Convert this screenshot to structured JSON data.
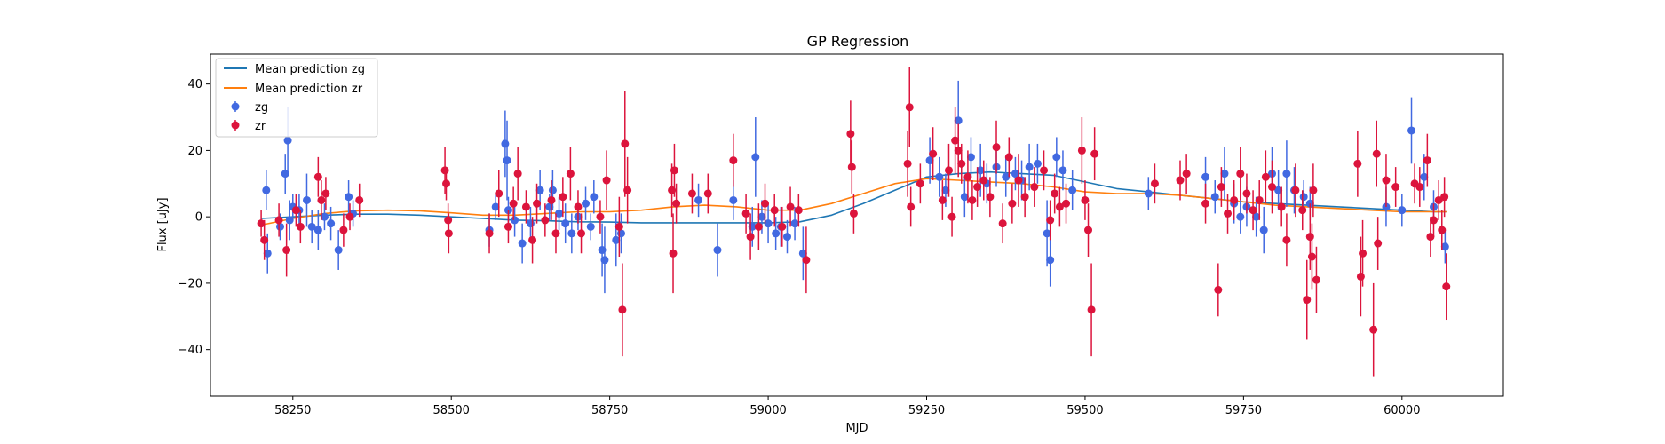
{
  "chart_data": {
    "type": "scatter",
    "title": "GP Regression",
    "xlabel": "MJD",
    "ylabel": "Flux [uJy]",
    "xlim": [
      58120,
      60160
    ],
    "ylim": [
      -54,
      49
    ],
    "xticks": [
      58250,
      58500,
      58750,
      59000,
      59250,
      59500,
      59750,
      60000
    ],
    "yticks": [
      -40,
      -20,
      0,
      20,
      40
    ],
    "grid": false,
    "legend": {
      "placement": "top-left",
      "entries": [
        "Mean prediction zg",
        "Mean prediction zr",
        "zg",
        "zr"
      ]
    },
    "colors": {
      "zg_points": "#4169e1",
      "zr_points": "#dc143c",
      "zg_mean": "#1f77b4",
      "zr_mean": "#ff7f0e"
    },
    "series": [
      {
        "name": "Mean prediction zg",
        "kind": "line",
        "x": [
          58200,
          58250,
          58300,
          58350,
          58400,
          58450,
          58500,
          58550,
          58600,
          58650,
          58700,
          58750,
          58800,
          58850,
          58900,
          58950,
          59000,
          59050,
          59100,
          59150,
          59200,
          59250,
          59300,
          59350,
          59400,
          59450,
          59500,
          59550,
          59600,
          59650,
          59700,
          59750,
          59800,
          59850,
          59900,
          59950,
          60000,
          60050,
          60070
        ],
        "y": [
          -0.5,
          0.0,
          0.5,
          0.8,
          0.8,
          0.5,
          0.0,
          -0.5,
          -1.0,
          -1.2,
          -1.5,
          -1.6,
          -1.8,
          -1.8,
          -1.8,
          -1.8,
          -1.8,
          -1.5,
          0.5,
          4.0,
          8.0,
          12.0,
          13.0,
          13.5,
          13.0,
          12.5,
          10.5,
          8.5,
          7.5,
          6.5,
          5.5,
          4.5,
          4.0,
          3.5,
          3.0,
          2.5,
          2.0,
          1.5,
          1.5
        ]
      },
      {
        "name": "Mean prediction zr",
        "kind": "line",
        "x": [
          58200,
          58250,
          58300,
          58350,
          58400,
          58450,
          58500,
          58550,
          58600,
          58650,
          58700,
          58750,
          58800,
          58850,
          58900,
          58950,
          59000,
          59050,
          59100,
          59150,
          59200,
          59250,
          59300,
          59350,
          59400,
          59450,
          59500,
          59550,
          59600,
          59650,
          59700,
          59750,
          59800,
          59850,
          59900,
          59950,
          60000,
          60050,
          60070
        ],
        "y": [
          -2.5,
          -0.5,
          1.0,
          1.8,
          2.0,
          1.8,
          1.2,
          0.5,
          0.5,
          1.0,
          1.5,
          1.5,
          2.0,
          3.0,
          3.5,
          3.0,
          2.0,
          2.0,
          4.0,
          7.0,
          10.0,
          11.5,
          11.0,
          10.5,
          10.0,
          9.0,
          7.5,
          7.0,
          7.0,
          6.5,
          5.5,
          4.5,
          3.5,
          3.0,
          2.5,
          2.0,
          1.5,
          1.5,
          1.5
        ]
      },
      {
        "name": "zg",
        "kind": "errorbar",
        "points": [
          [
            58208,
            8,
            6
          ],
          [
            58210,
            -11,
            6
          ],
          [
            58230,
            -3,
            4
          ],
          [
            58238,
            13,
            6
          ],
          [
            58242,
            23,
            10
          ],
          [
            58245,
            -1,
            6
          ],
          [
            58250,
            3,
            4
          ],
          [
            58260,
            2,
            5
          ],
          [
            58272,
            5,
            8
          ],
          [
            58280,
            -3,
            5
          ],
          [
            58290,
            -4,
            6
          ],
          [
            58300,
            0,
            4
          ],
          [
            58310,
            -2,
            5
          ],
          [
            58322,
            -10,
            6
          ],
          [
            58338,
            6,
            5
          ],
          [
            58345,
            1,
            4
          ],
          [
            58560,
            -4,
            5
          ],
          [
            58570,
            3,
            4
          ],
          [
            58585,
            22,
            10
          ],
          [
            58588,
            17,
            12
          ],
          [
            58590,
            2,
            4
          ],
          [
            58600,
            -1,
            5
          ],
          [
            58612,
            -8,
            6
          ],
          [
            58625,
            -2,
            5
          ],
          [
            58640,
            8,
            6
          ],
          [
            58655,
            3,
            4
          ],
          [
            58660,
            8,
            6
          ],
          [
            58670,
            1,
            5
          ],
          [
            58680,
            -2,
            6
          ],
          [
            58690,
            -5,
            6
          ],
          [
            58700,
            0,
            4
          ],
          [
            58712,
            4,
            5
          ],
          [
            58720,
            -3,
            4
          ],
          [
            58725,
            6,
            5
          ],
          [
            58738,
            -10,
            8
          ],
          [
            58742,
            -13,
            10
          ],
          [
            58760,
            -7,
            8
          ],
          [
            58768,
            -5,
            6
          ],
          [
            58890,
            5,
            5
          ],
          [
            58920,
            -10,
            8
          ],
          [
            58945,
            5,
            6
          ],
          [
            58975,
            -3,
            6
          ],
          [
            58980,
            18,
            12
          ],
          [
            58990,
            0,
            5
          ],
          [
            59000,
            -2,
            6
          ],
          [
            59012,
            -5,
            5
          ],
          [
            59020,
            -3,
            6
          ],
          [
            59030,
            -6,
            5
          ],
          [
            59042,
            -2,
            5
          ],
          [
            59055,
            -11,
            8
          ],
          [
            59255,
            17,
            7
          ],
          [
            59270,
            12,
            6
          ],
          [
            59280,
            8,
            5
          ],
          [
            59300,
            29,
            12
          ],
          [
            59310,
            6,
            6
          ],
          [
            59320,
            18,
            6
          ],
          [
            59335,
            14,
            8
          ],
          [
            59345,
            10,
            6
          ],
          [
            59360,
            15,
            6
          ],
          [
            59375,
            12,
            6
          ],
          [
            59390,
            13,
            5
          ],
          [
            59400,
            11,
            6
          ],
          [
            59412,
            15,
            7
          ],
          [
            59425,
            16,
            6
          ],
          [
            59440,
            -5,
            10
          ],
          [
            59445,
            -13,
            8
          ],
          [
            59455,
            18,
            6
          ],
          [
            59465,
            14,
            6
          ],
          [
            59480,
            8,
            6
          ],
          [
            59600,
            7,
            5
          ],
          [
            59690,
            12,
            6
          ],
          [
            59705,
            6,
            5
          ],
          [
            59720,
            13,
            8
          ],
          [
            59735,
            4,
            6
          ],
          [
            59745,
            0,
            5
          ],
          [
            59755,
            3,
            6
          ],
          [
            59770,
            0,
            6
          ],
          [
            59782,
            -4,
            7
          ],
          [
            59795,
            13,
            8
          ],
          [
            59805,
            8,
            6
          ],
          [
            59818,
            13,
            10
          ],
          [
            59830,
            8,
            7
          ],
          [
            59845,
            6,
            5
          ],
          [
            59855,
            4,
            5
          ],
          [
            59975,
            3,
            6
          ],
          [
            60000,
            2,
            5
          ],
          [
            60015,
            26,
            10
          ],
          [
            60035,
            12,
            7
          ],
          [
            60050,
            3,
            5
          ],
          [
            60068,
            -9,
            5
          ]
        ]
      },
      {
        "name": "zr",
        "kind": "errorbar",
        "points": [
          [
            58200,
            -2,
            4
          ],
          [
            58205,
            -7,
            6
          ],
          [
            58228,
            -1,
            5
          ],
          [
            58240,
            -10,
            8
          ],
          [
            58255,
            2,
            5
          ],
          [
            58262,
            -3,
            5
          ],
          [
            58290,
            12,
            6
          ],
          [
            58295,
            5,
            6
          ],
          [
            58302,
            7,
            5
          ],
          [
            58330,
            -4,
            5
          ],
          [
            58340,
            0,
            4
          ],
          [
            58355,
            5,
            5
          ],
          [
            58490,
            14,
            7
          ],
          [
            58492,
            10,
            5
          ],
          [
            58496,
            -5,
            6
          ],
          [
            58495,
            -1,
            5
          ],
          [
            58560,
            -5,
            6
          ],
          [
            58575,
            7,
            7
          ],
          [
            58590,
            -3,
            5
          ],
          [
            58598,
            4,
            5
          ],
          [
            58605,
            13,
            8
          ],
          [
            58618,
            3,
            5
          ],
          [
            58628,
            -7,
            7
          ],
          [
            58635,
            4,
            6
          ],
          [
            58648,
            -1,
            5
          ],
          [
            58658,
            5,
            6
          ],
          [
            58665,
            -5,
            6
          ],
          [
            58676,
            6,
            6
          ],
          [
            58688,
            13,
            8
          ],
          [
            58700,
            3,
            5
          ],
          [
            58705,
            -5,
            6
          ],
          [
            58735,
            0,
            5
          ],
          [
            58745,
            11,
            9
          ],
          [
            58765,
            -3,
            9
          ],
          [
            58770,
            -28,
            14
          ],
          [
            58774,
            22,
            16
          ],
          [
            58778,
            8,
            10
          ],
          [
            58848,
            8,
            8
          ],
          [
            58850,
            -11,
            12
          ],
          [
            58852,
            14,
            8
          ],
          [
            58855,
            4,
            6
          ],
          [
            58880,
            7,
            6
          ],
          [
            58905,
            7,
            6
          ],
          [
            58945,
            17,
            8
          ],
          [
            58965,
            1,
            6
          ],
          [
            58972,
            -6,
            7
          ],
          [
            58985,
            -3,
            7
          ],
          [
            58995,
            4,
            6
          ],
          [
            59010,
            2,
            5
          ],
          [
            59022,
            -3,
            6
          ],
          [
            59035,
            3,
            6
          ],
          [
            59048,
            2,
            5
          ],
          [
            59060,
            -13,
            10
          ],
          [
            59130,
            25,
            10
          ],
          [
            59132,
            15,
            8
          ],
          [
            59135,
            1,
            6
          ],
          [
            59220,
            16,
            10
          ],
          [
            59223,
            33,
            12
          ],
          [
            59225,
            3,
            6
          ],
          [
            59240,
            10,
            6
          ],
          [
            59260,
            19,
            8
          ],
          [
            59275,
            5,
            6
          ],
          [
            59285,
            14,
            8
          ],
          [
            59290,
            0,
            6
          ],
          [
            59295,
            23,
            10
          ],
          [
            59300,
            20,
            8
          ],
          [
            59305,
            16,
            6
          ],
          [
            59315,
            12,
            8
          ],
          [
            59322,
            5,
            6
          ],
          [
            59330,
            9,
            6
          ],
          [
            59340,
            11,
            6
          ],
          [
            59350,
            6,
            6
          ],
          [
            59360,
            21,
            8
          ],
          [
            59370,
            -2,
            6
          ],
          [
            59380,
            18,
            6
          ],
          [
            59385,
            4,
            6
          ],
          [
            59395,
            11,
            8
          ],
          [
            59405,
            6,
            6
          ],
          [
            59420,
            9,
            6
          ],
          [
            59435,
            14,
            6
          ],
          [
            59445,
            -1,
            6
          ],
          [
            59452,
            7,
            6
          ],
          [
            59460,
            3,
            6
          ],
          [
            59470,
            4,
            6
          ],
          [
            59495,
            20,
            10
          ],
          [
            59500,
            5,
            6
          ],
          [
            59505,
            -4,
            8
          ],
          [
            59510,
            -28,
            14
          ],
          [
            59515,
            19,
            8
          ],
          [
            59610,
            10,
            6
          ],
          [
            59650,
            11,
            6
          ],
          [
            59660,
            13,
            6
          ],
          [
            59690,
            4,
            6
          ],
          [
            59710,
            -22,
            8
          ],
          [
            59715,
            9,
            6
          ],
          [
            59725,
            1,
            6
          ],
          [
            59735,
            5,
            6
          ],
          [
            59745,
            13,
            8
          ],
          [
            59755,
            7,
            6
          ],
          [
            59765,
            2,
            6
          ],
          [
            59775,
            5,
            6
          ],
          [
            59785,
            12,
            8
          ],
          [
            59795,
            9,
            8
          ],
          [
            59810,
            3,
            6
          ],
          [
            59818,
            -7,
            8
          ],
          [
            59832,
            8,
            8
          ],
          [
            59843,
            2,
            6
          ],
          [
            59850,
            -25,
            12
          ],
          [
            59855,
            -6,
            10
          ],
          [
            59858,
            -12,
            10
          ],
          [
            59860,
            8,
            8
          ],
          [
            59865,
            -19,
            10
          ],
          [
            59930,
            16,
            10
          ],
          [
            59935,
            -18,
            12
          ],
          [
            59938,
            -11,
            10
          ],
          [
            59955,
            -34,
            14
          ],
          [
            59960,
            19,
            10
          ],
          [
            59962,
            -8,
            8
          ],
          [
            59975,
            11,
            8
          ],
          [
            59990,
            9,
            6
          ],
          [
            60020,
            10,
            6
          ],
          [
            60028,
            9,
            6
          ],
          [
            60040,
            17,
            8
          ],
          [
            60045,
            -6,
            6
          ],
          [
            60050,
            -1,
            5
          ],
          [
            60058,
            5,
            6
          ],
          [
            60063,
            -4,
            6
          ],
          [
            60067,
            6,
            6
          ],
          [
            60070,
            -21,
            10
          ]
        ]
      }
    ]
  }
}
